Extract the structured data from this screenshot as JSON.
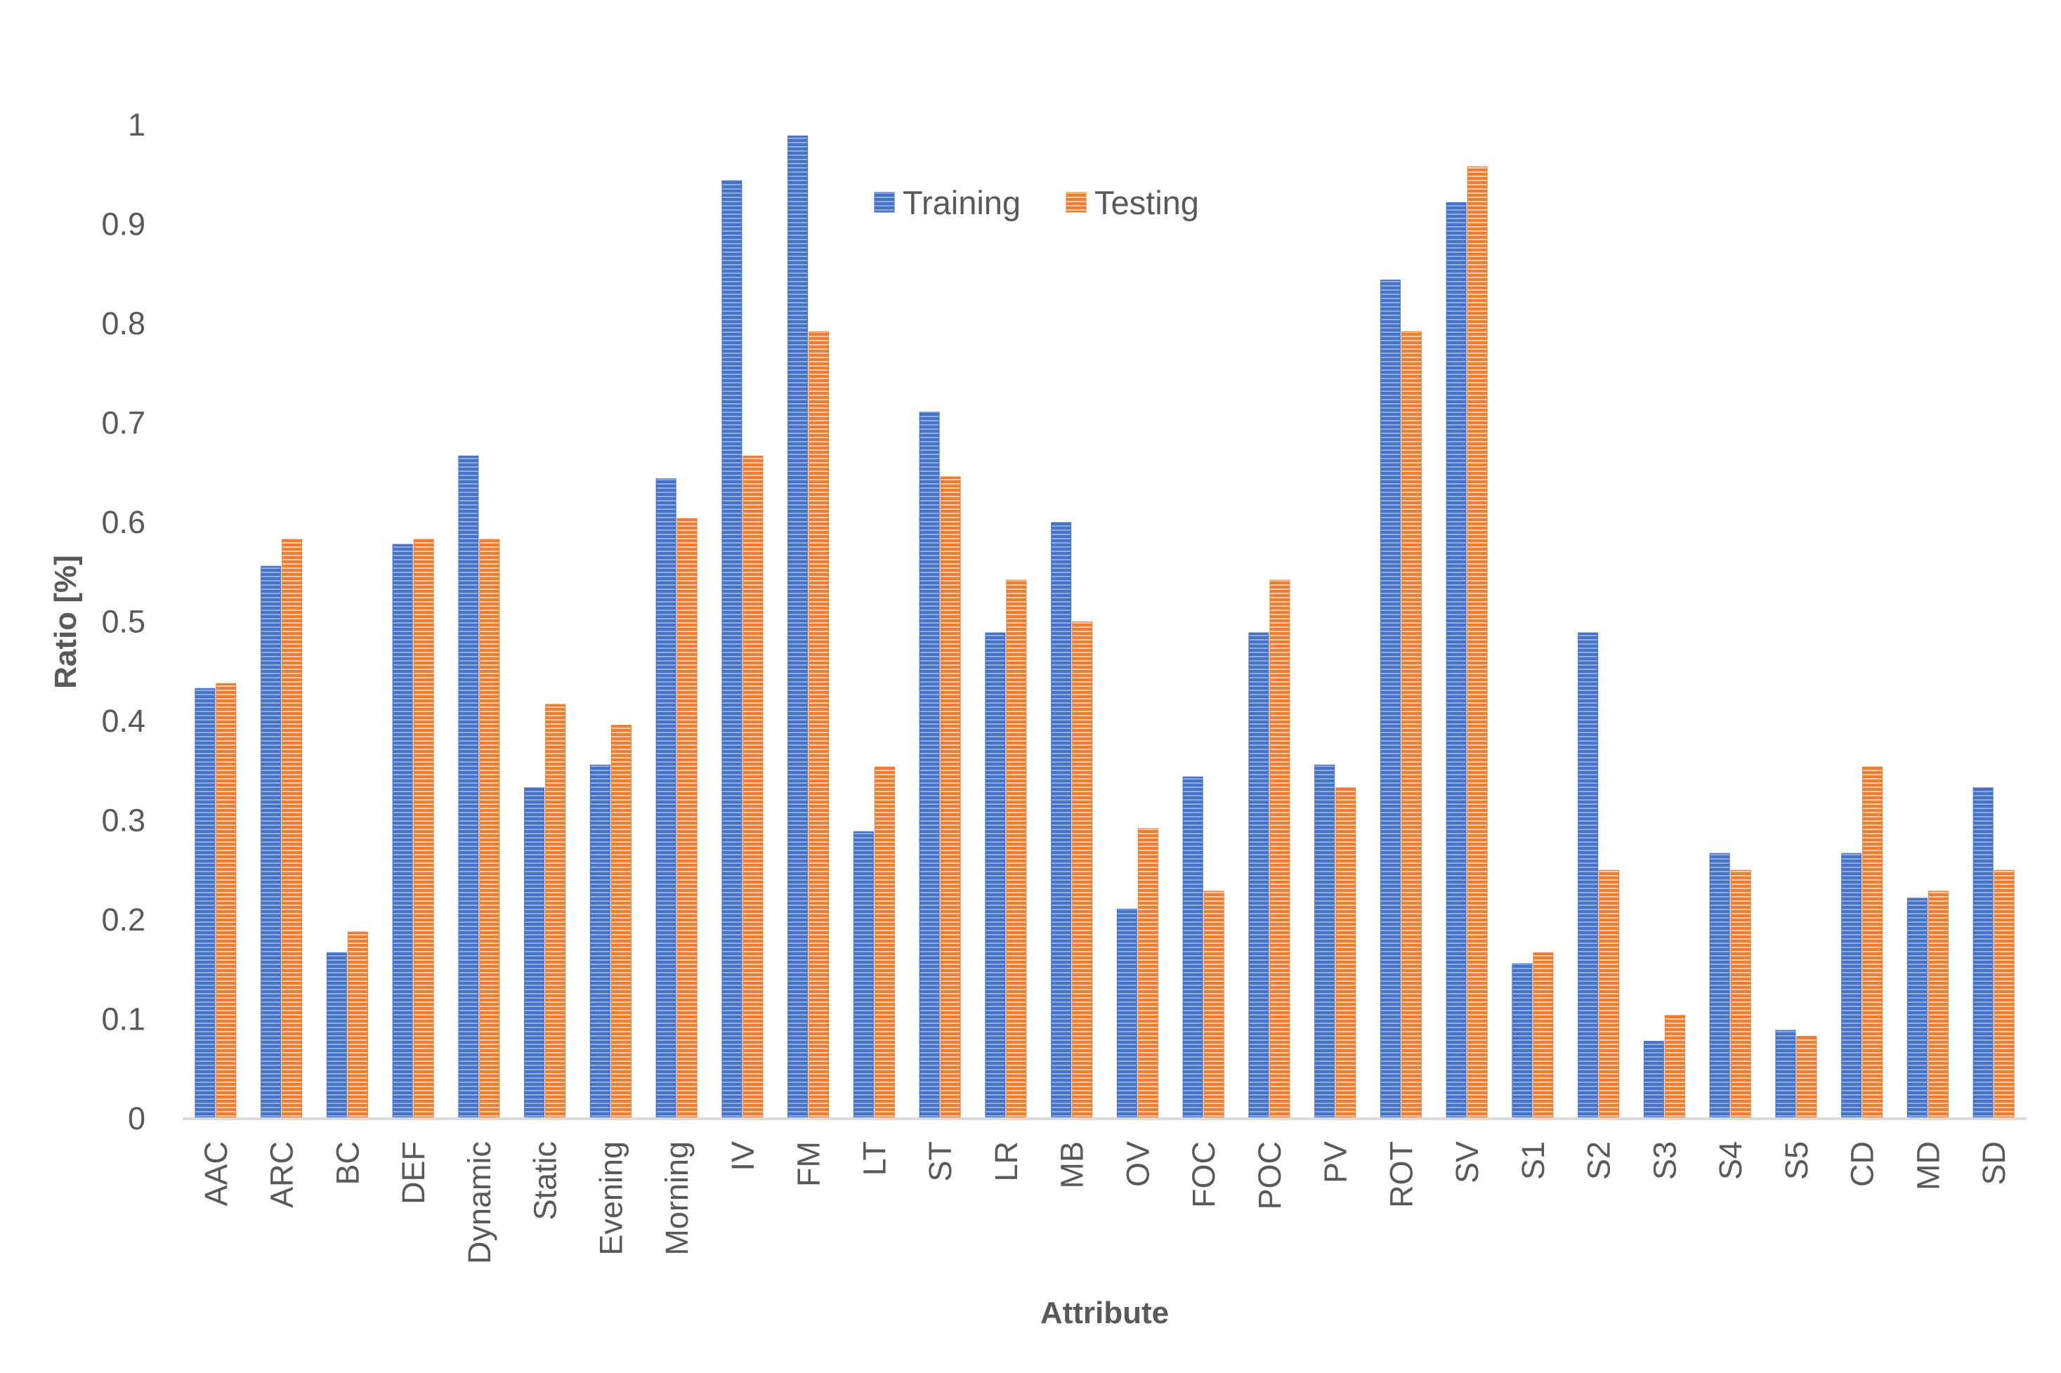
{
  "chart_data": {
    "type": "bar",
    "title": "",
    "xlabel": "Attribute",
    "ylabel": "Ratio [%]",
    "ylim": [
      0,
      1
    ],
    "yticks": [
      "0",
      "0.1",
      "0.2",
      "0.3",
      "0.4",
      "0.5",
      "0.6",
      "0.7",
      "0.8",
      "0.9",
      "1"
    ],
    "grid": false,
    "legend_position": "top-center",
    "categories": [
      "AAC",
      "ARC",
      "BC",
      "DEF",
      "Dynamic",
      "Static",
      "Evening",
      "Morning",
      "IV",
      "FM",
      "LT",
      "ST",
      "LR",
      "MB",
      "OV",
      "FOC",
      "POC",
      "PV",
      "ROT",
      "SV",
      "S1",
      "S2",
      "S3",
      "S4",
      "S5",
      "CD",
      "MD",
      "SD"
    ],
    "series": [
      {
        "name": "Training",
        "color": "#4472C4",
        "values": [
          0.433,
          0.556,
          0.167,
          0.578,
          0.667,
          0.333,
          0.356,
          0.644,
          0.944,
          0.989,
          0.289,
          0.711,
          0.489,
          0.6,
          0.211,
          0.344,
          0.489,
          0.356,
          0.844,
          0.922,
          0.156,
          0.489,
          0.078,
          0.267,
          0.089,
          0.267,
          0.222,
          0.333
        ]
      },
      {
        "name": "Testing",
        "color": "#ED7D31",
        "values": [
          0.438,
          0.583,
          0.188,
          0.583,
          0.583,
          0.417,
          0.396,
          0.604,
          0.667,
          0.792,
          0.354,
          0.646,
          0.542,
          0.5,
          0.292,
          0.229,
          0.542,
          0.333,
          0.792,
          0.958,
          0.167,
          0.25,
          0.104,
          0.25,
          0.083,
          0.354,
          0.229,
          0.25
        ]
      }
    ]
  }
}
